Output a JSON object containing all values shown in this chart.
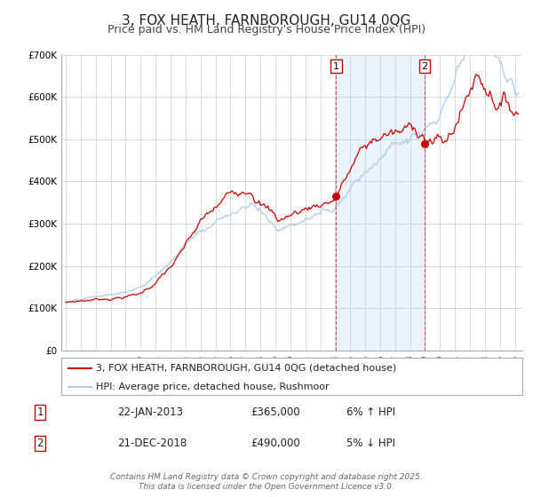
{
  "title": "3, FOX HEATH, FARNBOROUGH, GU14 0QG",
  "subtitle": "Price paid vs. HM Land Registry's House Price Index (HPI)",
  "ylim": [
    0,
    700000
  ],
  "xlim": [
    1994.7,
    2025.5
  ],
  "yticks": [
    0,
    100000,
    200000,
    300000,
    400000,
    500000,
    600000,
    700000
  ],
  "ytick_labels": [
    "£0",
    "£100K",
    "£200K",
    "£300K",
    "£400K",
    "£500K",
    "£600K",
    "£700K"
  ],
  "xticks": [
    1995,
    1996,
    1997,
    1998,
    1999,
    2000,
    2001,
    2002,
    2003,
    2004,
    2005,
    2006,
    2007,
    2008,
    2009,
    2010,
    2011,
    2012,
    2013,
    2014,
    2015,
    2016,
    2017,
    2018,
    2019,
    2020,
    2021,
    2022,
    2023,
    2024,
    2025
  ],
  "background_color": "#ffffff",
  "plot_bg_color": "#ffffff",
  "grid_color": "#cccccc",
  "red_line_color": "#cc0000",
  "blue_line_color": "#aaccee",
  "shade_color": "#ddeeff",
  "marker1_x": 2013.06,
  "marker1_y": 365000,
  "marker2_x": 2018.97,
  "marker2_y": 490000,
  "vline1_x": 2013.06,
  "vline2_x": 2018.97,
  "legend_label_red": "3, FOX HEATH, FARNBOROUGH, GU14 0QG (detached house)",
  "legend_label_blue": "HPI: Average price, detached house, Rushmoor",
  "annotation1_label": "1",
  "annotation2_label": "2",
  "annotation1_date": "22-JAN-2013",
  "annotation1_price": "£365,000",
  "annotation1_hpi": "6% ↑ HPI",
  "annotation2_date": "21-DEC-2018",
  "annotation2_price": "£490,000",
  "annotation2_hpi": "5% ↓ HPI",
  "footer": "Contains HM Land Registry data © Crown copyright and database right 2025.\nThis data is licensed under the Open Government Licence v3.0.",
  "title_fontsize": 11,
  "subtitle_fontsize": 9,
  "tick_fontsize": 7.5,
  "legend_fontsize": 8,
  "annotation_fontsize": 8.5
}
